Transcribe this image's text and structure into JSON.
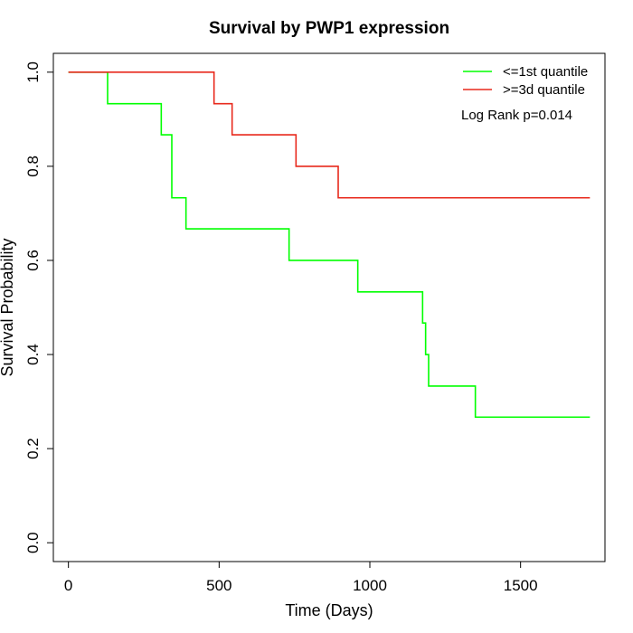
{
  "chart_data": {
    "type": "line",
    "subtype": "kaplan-meier-step",
    "title": "Survival by PWP1 expression",
    "xlabel": "Time (Days)",
    "ylabel": "Survival Probability",
    "xlim": [
      -50,
      1780
    ],
    "ylim": [
      -0.04,
      1.04
    ],
    "x_ticks": [
      0,
      500,
      1000,
      1500
    ],
    "x_tick_labels": [
      "0",
      "500",
      "1000",
      "1500"
    ],
    "y_ticks": [
      0.0,
      0.2,
      0.4,
      0.6,
      0.8,
      1.0
    ],
    "y_tick_labels": [
      "0.0",
      "0.2",
      "0.4",
      "0.6",
      "0.8",
      "1.0"
    ],
    "grid": false,
    "legend_position": "top-right",
    "annotation": "Log Rank p=0.014",
    "series": [
      {
        "name": "<=1st quantile",
        "color": "#00ff00",
        "points": [
          [
            0,
            1.0
          ],
          [
            130,
            0.933
          ],
          [
            308,
            0.867
          ],
          [
            343,
            0.733
          ],
          [
            390,
            0.667
          ],
          [
            732,
            0.6
          ],
          [
            960,
            0.533
          ],
          [
            1175,
            0.467
          ],
          [
            1185,
            0.4
          ],
          [
            1195,
            0.333
          ],
          [
            1350,
            0.267
          ],
          [
            1730,
            0.267
          ]
        ]
      },
      {
        "name": ">=3d quantile",
        "color": "#e8291c",
        "points": [
          [
            0,
            1.0
          ],
          [
            483,
            0.933
          ],
          [
            543,
            0.867
          ],
          [
            755,
            0.8
          ],
          [
            895,
            0.733
          ],
          [
            1730,
            0.733
          ]
        ]
      }
    ]
  }
}
